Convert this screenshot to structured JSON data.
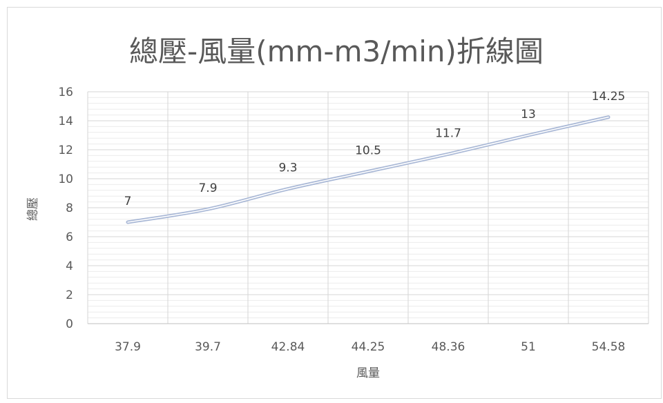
{
  "chart_data": {
    "type": "line",
    "title": "總壓-風量(mm-m3/min)折線圖",
    "xlabel": "風量",
    "ylabel": "總壓",
    "categories": [
      "37.9",
      "39.7",
      "42.84",
      "44.25",
      "48.36",
      "51",
      "54.58"
    ],
    "series": [
      {
        "values": [
          7,
          7.9,
          9.3,
          10.5,
          11.7,
          13,
          14.25
        ],
        "color": "#a9b8d6"
      }
    ],
    "data_labels": [
      "7",
      "7.9",
      "9.3",
      "10.5",
      "11.7",
      "13",
      "14.25"
    ],
    "ylim": [
      0,
      16
    ],
    "yticks": [
      0,
      2,
      4,
      6,
      8,
      10,
      12,
      14,
      16
    ],
    "ytick_labels": [
      "0",
      "2",
      "4",
      "6",
      "8",
      "10",
      "12",
      "14",
      "16"
    ],
    "grid": true,
    "minor_grid": true,
    "legend": "none"
  }
}
